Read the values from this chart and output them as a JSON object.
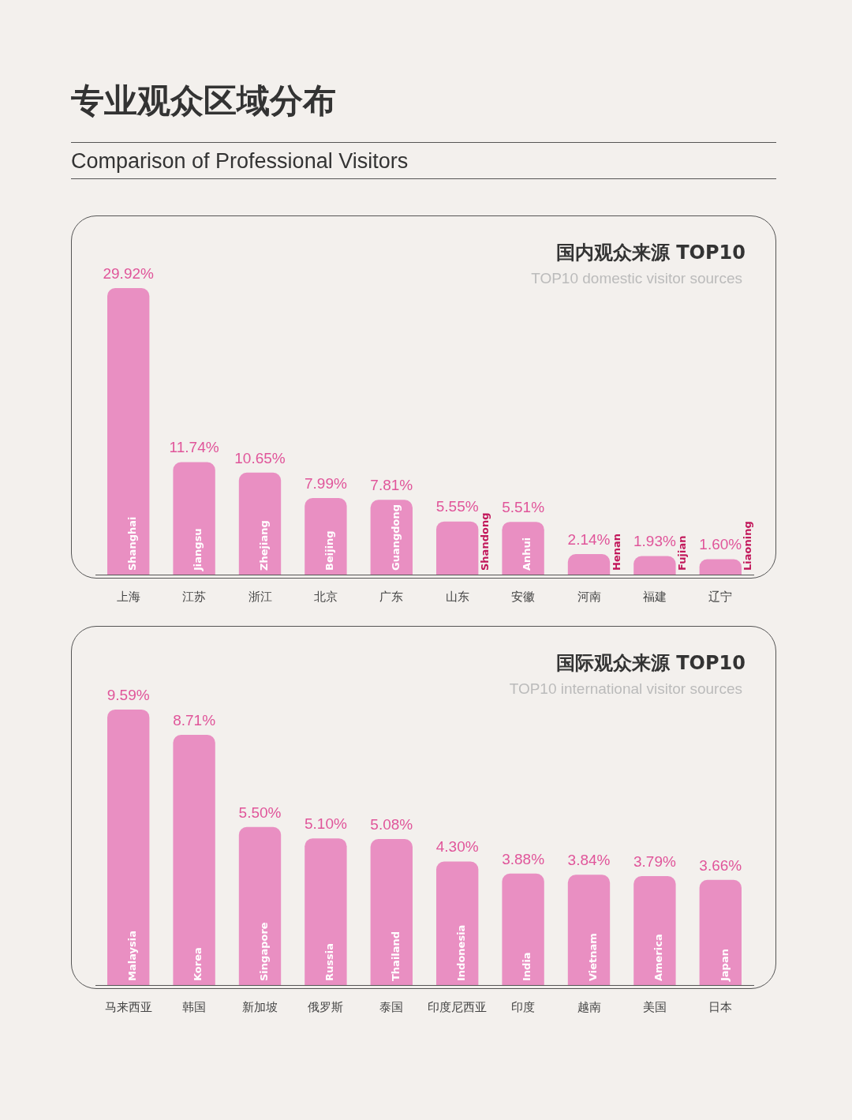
{
  "chart_data": [
    {
      "type": "other",
      "title": "专业观众区域分布",
      "subtitle": "Comparison of Professional Visitors"
    },
    {
      "type": "bar",
      "title": "国内观众来源 TOP10",
      "subtitle": "TOP10 domestic visitor sources",
      "categories": [
        "上海",
        "江苏",
        "浙江",
        "北京",
        "广东",
        "山东",
        "安徽",
        "河南",
        "福建",
        "辽宁"
      ],
      "values": [
        29.92,
        11.74,
        10.65,
        7.99,
        7.81,
        5.55,
        5.51,
        2.14,
        1.93,
        1.6
      ],
      "value_labels": [
        "29.92%",
        "11.74%",
        "10.65%",
        "7.99%",
        "7.81%",
        "5.55%",
        "5.51%",
        "2.14%",
        "1.93%",
        "1.60%"
      ],
      "color": "#e98fc2",
      "annotations": [
        {
          "text": "Shanghai",
          "x": "上海",
          "y": 0
        },
        {
          "text": "Jiangsu",
          "x": "江苏",
          "y": 0
        },
        {
          "text": "Zhejiang",
          "x": "浙江",
          "y": 0
        },
        {
          "text": "Beijing",
          "x": "北京",
          "y": 0
        },
        {
          "text": "Guangdong",
          "x": "广东",
          "y": 0
        },
        {
          "text": "Shandong",
          "x": "山东",
          "y": 0
        },
        {
          "text": "Anhui",
          "x": "安徽",
          "y": 0
        },
        {
          "text": "Henan",
          "x": "河南",
          "y": 0
        },
        {
          "text": "Fujian",
          "x": "福建",
          "y": 0
        },
        {
          "text": "Liaoning",
          "x": "辽宁",
          "y": 0
        }
      ]
    },
    {
      "type": "bar",
      "title": "国际观众来源 TOP10",
      "subtitle": "TOP10 international visitor sources",
      "categories": [
        "马来西亚",
        "韩国",
        "新加坡",
        "俄罗斯",
        "泰国",
        "印度尼西亚",
        "印度",
        "越南",
        "美国",
        "日本"
      ],
      "values": [
        9.59,
        8.71,
        5.5,
        5.1,
        5.08,
        4.3,
        3.88,
        3.84,
        3.79,
        3.66
      ],
      "value_labels": [
        "9.59%",
        "8.71%",
        "5.50%",
        "5.10%",
        "5.08%",
        "4.30%",
        "3.88%",
        "3.84%",
        "3.79%",
        "3.66%"
      ],
      "color": "#e98fc2",
      "annotations": [
        {
          "text": "Malaysia",
          "x": "马来西亚",
          "y": 0
        },
        {
          "text": "Korea",
          "x": "韩国",
          "y": 0
        },
        {
          "text": "Singapore",
          "x": "新加坡",
          "y": 0
        },
        {
          "text": "Russia",
          "x": "俄罗斯",
          "y": 0
        },
        {
          "text": "Thailand",
          "x": "泰国",
          "y": 0
        },
        {
          "text": "Indonesia",
          "x": "印度尼西亚",
          "y": 0
        },
        {
          "text": "India",
          "x": "印度",
          "y": 0
        },
        {
          "text": "Vietnam",
          "x": "越南",
          "y": 0
        },
        {
          "text": "America",
          "x": "美国",
          "y": 0
        },
        {
          "text": "Japan",
          "x": "日本",
          "y": 0
        }
      ]
    }
  ]
}
